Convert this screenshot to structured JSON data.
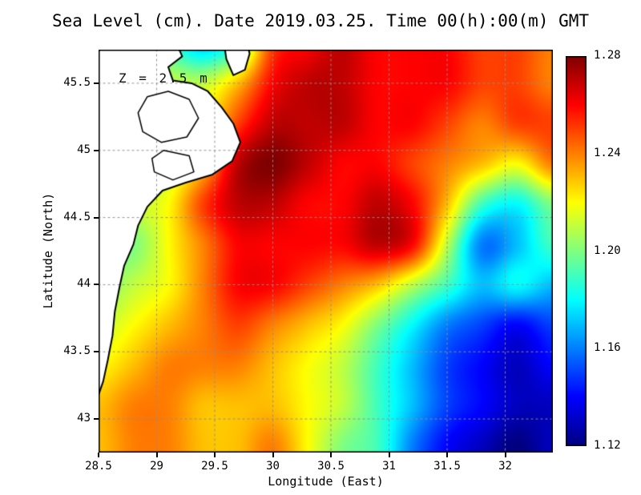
{
  "chart_data": {
    "type": "heatmap",
    "title": "Sea Level (cm). Date 2019.03.25. Time 00(h):00(m) GMT",
    "xlabel": "Longitude (East)",
    "ylabel": "Latitude (North)",
    "annotation": "Z = 2.5 m",
    "xlim": [
      28.5,
      32.41
    ],
    "ylim": [
      42.75,
      45.75
    ],
    "grid_style": "dashed",
    "x_tick_values": [
      28.5,
      29,
      29.5,
      30,
      30.5,
      31,
      31.5,
      32
    ],
    "x_tick_labels": [
      "28.5",
      "29",
      "29.5",
      "30",
      "30.5",
      "31",
      "31.5",
      "32"
    ],
    "y_tick_values": [
      43,
      43.5,
      44,
      44.5,
      45,
      45.5
    ],
    "y_tick_labels": [
      "43",
      "43.5",
      "44",
      "44.5",
      "45",
      "45.5"
    ],
    "colorbar": {
      "min": 1.12,
      "max": 1.28,
      "tick_values": [
        1.12,
        1.16,
        1.2,
        1.24,
        1.28
      ],
      "tick_labels": [
        "1.12",
        "1.16",
        "1.20",
        "1.24",
        "1.28"
      ],
      "colormap": "jet"
    },
    "heatmap": {
      "lon": [
        28.5,
        28.8,
        29.1,
        29.4,
        29.7,
        30.0,
        30.3,
        30.6,
        30.9,
        31.2,
        31.5,
        31.8,
        32.1,
        32.4
      ],
      "lat": [
        45.8,
        45.5,
        45.2,
        44.9,
        44.6,
        44.3,
        44.0,
        43.7,
        43.4,
        43.1,
        42.8
      ],
      "values": [
        [
          1.2,
          1.2,
          1.19,
          1.17,
          1.19,
          1.25,
          1.26,
          1.27,
          1.26,
          1.26,
          1.26,
          1.25,
          1.25,
          1.24
        ],
        [
          1.21,
          1.21,
          1.21,
          1.21,
          1.23,
          1.26,
          1.27,
          1.27,
          1.26,
          1.26,
          1.26,
          1.25,
          1.25,
          1.24
        ],
        [
          1.21,
          1.21,
          1.21,
          1.22,
          1.25,
          1.27,
          1.27,
          1.27,
          1.26,
          1.26,
          1.25,
          1.24,
          1.25,
          1.25
        ],
        [
          1.2,
          1.2,
          1.21,
          1.23,
          1.27,
          1.28,
          1.27,
          1.26,
          1.26,
          1.25,
          1.24,
          1.23,
          1.22,
          1.24
        ],
        [
          1.2,
          1.21,
          1.22,
          1.25,
          1.27,
          1.27,
          1.26,
          1.26,
          1.27,
          1.26,
          1.23,
          1.19,
          1.18,
          1.2
        ],
        [
          1.2,
          1.2,
          1.22,
          1.24,
          1.26,
          1.26,
          1.26,
          1.26,
          1.27,
          1.26,
          1.21,
          1.16,
          1.17,
          1.19
        ],
        [
          1.2,
          1.21,
          1.22,
          1.24,
          1.26,
          1.26,
          1.25,
          1.24,
          1.23,
          1.21,
          1.19,
          1.17,
          1.18,
          1.17
        ],
        [
          1.21,
          1.22,
          1.23,
          1.24,
          1.25,
          1.24,
          1.23,
          1.22,
          1.2,
          1.18,
          1.16,
          1.15,
          1.14,
          1.15
        ],
        [
          1.22,
          1.23,
          1.24,
          1.24,
          1.24,
          1.23,
          1.22,
          1.21,
          1.19,
          1.17,
          1.15,
          1.14,
          1.13,
          1.14
        ],
        [
          1.23,
          1.24,
          1.24,
          1.23,
          1.23,
          1.23,
          1.22,
          1.21,
          1.19,
          1.17,
          1.15,
          1.14,
          1.13,
          1.13
        ],
        [
          1.23,
          1.24,
          1.24,
          1.23,
          1.23,
          1.24,
          1.22,
          1.2,
          1.19,
          1.16,
          1.14,
          1.13,
          1.12,
          1.13
        ]
      ]
    },
    "coastline": {
      "land_color": "#ffffff",
      "line_color": "#000000",
      "main": [
        [
          29.17,
          45.8
        ],
        [
          29.22,
          45.7
        ],
        [
          29.1,
          45.62
        ],
        [
          29.14,
          45.52
        ],
        [
          29.3,
          45.5
        ],
        [
          29.44,
          45.44
        ],
        [
          29.56,
          45.32
        ],
        [
          29.66,
          45.2
        ],
        [
          29.72,
          45.06
        ],
        [
          29.65,
          44.92
        ],
        [
          29.48,
          44.82
        ],
        [
          29.25,
          44.76
        ],
        [
          29.05,
          44.7
        ],
        [
          28.92,
          44.58
        ],
        [
          28.84,
          44.44
        ],
        [
          28.8,
          44.3
        ],
        [
          28.72,
          44.14
        ],
        [
          28.68,
          43.98
        ],
        [
          28.64,
          43.8
        ],
        [
          28.62,
          43.62
        ],
        [
          28.58,
          43.44
        ],
        [
          28.54,
          43.28
        ],
        [
          28.5,
          43.18
        ]
      ],
      "delta": [
        [
          29.58,
          45.8
        ],
        [
          29.6,
          45.68
        ],
        [
          29.66,
          45.56
        ],
        [
          29.76,
          45.6
        ],
        [
          29.8,
          45.72
        ],
        [
          29.78,
          45.8
        ]
      ],
      "lakes": [
        [
          [
            28.92,
            45.4
          ],
          [
            29.1,
            45.44
          ],
          [
            29.28,
            45.38
          ],
          [
            29.36,
            45.24
          ],
          [
            29.26,
            45.1
          ],
          [
            29.04,
            45.06
          ],
          [
            28.88,
            45.14
          ],
          [
            28.84,
            45.28
          ]
        ],
        [
          [
            29.06,
            45.0
          ],
          [
            29.28,
            44.96
          ],
          [
            29.32,
            44.84
          ],
          [
            29.14,
            44.78
          ],
          [
            28.98,
            44.84
          ],
          [
            28.96,
            44.94
          ]
        ]
      ]
    }
  }
}
